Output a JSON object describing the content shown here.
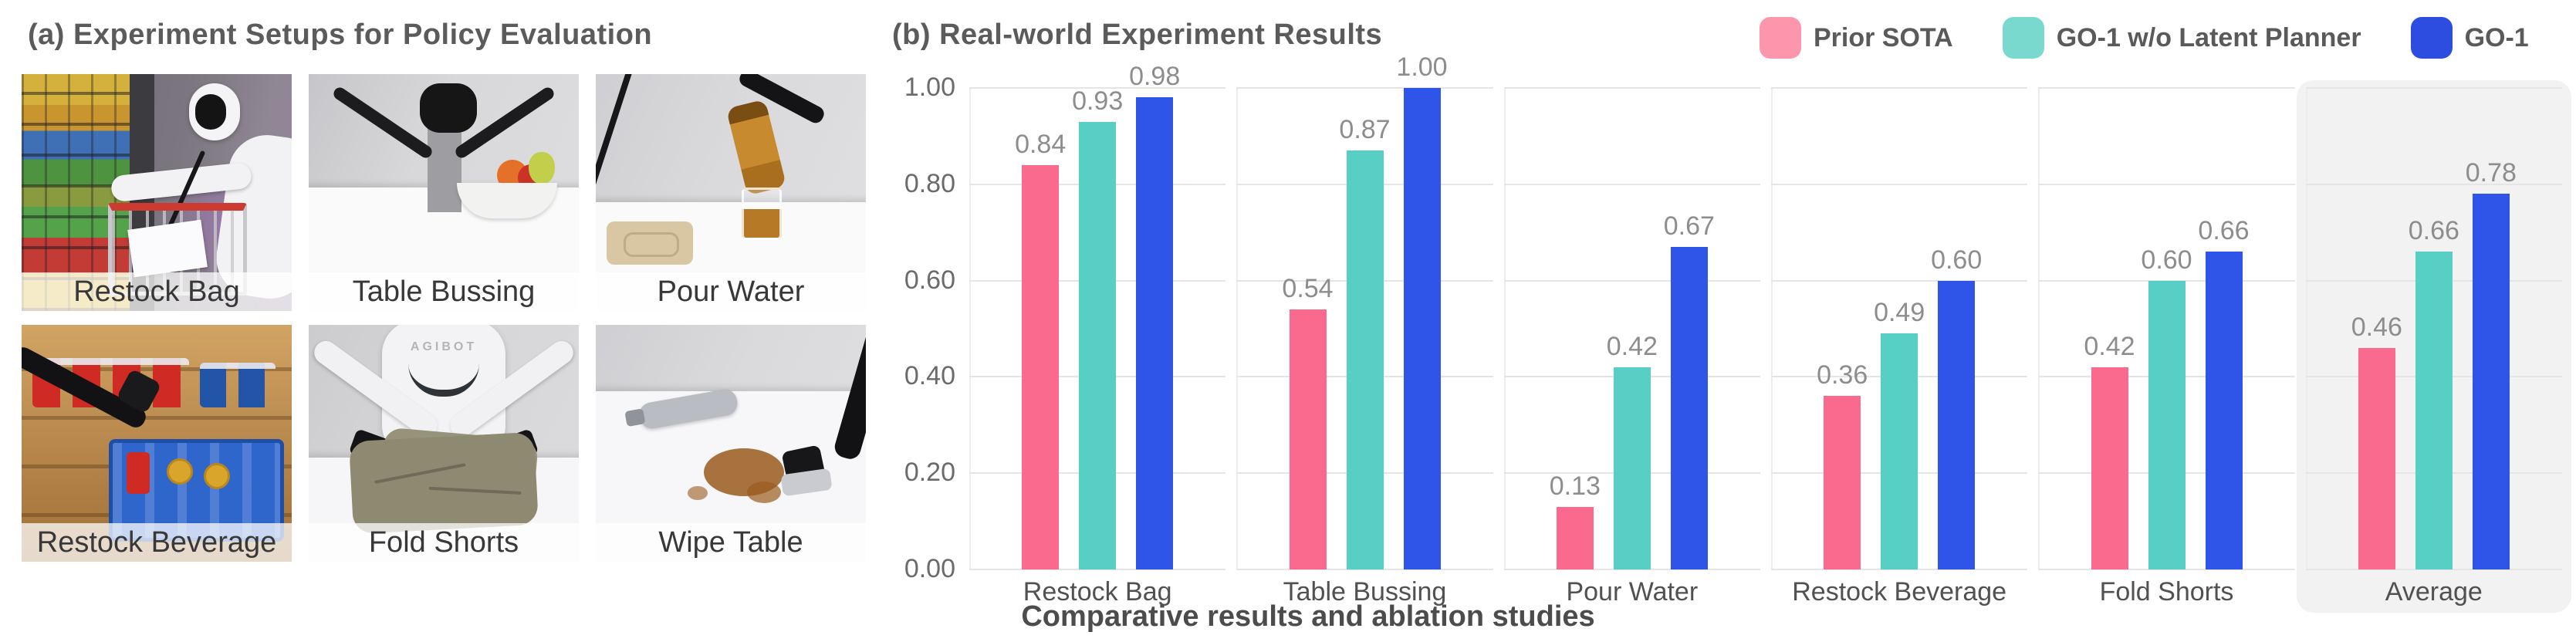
{
  "figure": {
    "left": {
      "title": "(a) Experiment Setups for Policy Evaluation",
      "photos": [
        {
          "label": "Restock Bag"
        },
        {
          "label": "Table Bussing"
        },
        {
          "label": "Pour Water"
        },
        {
          "label": "Restock Beverage"
        },
        {
          "label": "Fold Shorts",
          "robot_logo": "AGIBOT"
        },
        {
          "label": "Wipe Table"
        }
      ]
    },
    "right": {
      "title": "(b) Real-world Experiment Results",
      "caption": "Comparative results and ablation studies"
    }
  },
  "chart_data": {
    "type": "bar",
    "title": "(b) Real-world Experiment Results",
    "categories": [
      "Restock Bag",
      "Table Bussing",
      "Pour Water",
      "Restock Beverage",
      "Fold Shorts",
      "Average"
    ],
    "series": [
      {
        "name": "Prior SOTA",
        "color": "#FA6A8E",
        "legend_swatch_color": "#FC96AC",
        "values": [
          0.84,
          0.54,
          0.13,
          0.36,
          0.42,
          0.46
        ]
      },
      {
        "name": "GO-1 w/o Latent Planner",
        "color": "#58CFC5",
        "legend_swatch_color": "#79D9CF",
        "values": [
          0.93,
          0.87,
          0.42,
          0.49,
          0.6,
          0.66
        ]
      },
      {
        "name": "GO-1",
        "color": "#2E55E8",
        "legend_swatch_color": "#2C4DE0",
        "values": [
          0.98,
          1.0,
          0.67,
          0.6,
          0.66,
          0.78
        ]
      }
    ],
    "ylim": [
      0,
      1.0
    ],
    "yticks": [
      "0.00",
      "0.20",
      "0.40",
      "0.60",
      "0.80",
      "1.00"
    ],
    "grid": "horizontal",
    "gridline_color": "#e5e5e5",
    "legend_position": "top-right",
    "highlight_category": "Average",
    "highlight_color": "#f2f2f3",
    "value_labels": "shown above bars, 2 decimals"
  }
}
